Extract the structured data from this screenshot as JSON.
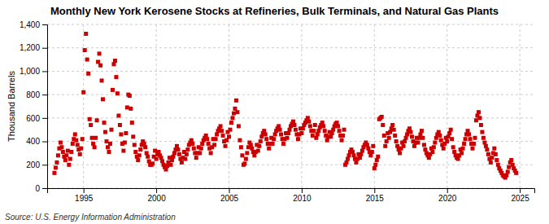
{
  "chart_data": {
    "type": "scatter",
    "title": "Monthly New York Kerosene Stocks at Refineries, Bulk Terminals, and Natural Gas Plants",
    "ylabel": "Thousand Barrels",
    "annotations": [
      "Source: U.S. Energy Information Administration"
    ],
    "color": "#cc0000",
    "marker": "square",
    "grid": true,
    "xlim": [
      1992.5,
      2026.0
    ],
    "xticks": [
      1995,
      2000,
      2005,
      2010,
      2015,
      2020,
      2025
    ],
    "ylim": [
      0,
      1400
    ],
    "yticks": [
      0,
      200,
      400,
      600,
      800,
      {
        "value": 1000,
        "label": "1,000"
      },
      {
        "value": 1200,
        "label": "1,200"
      },
      {
        "value": 1400,
        "label": "1,400"
      }
    ],
    "x": [
      1993.0,
      1993.083,
      1993.167,
      1993.25,
      1993.333,
      1993.417,
      1993.5,
      1993.583,
      1993.667,
      1993.75,
      1993.833,
      1993.917,
      1994.0,
      1994.083,
      1994.167,
      1994.25,
      1994.333,
      1994.417,
      1994.5,
      1994.583,
      1994.667,
      1994.75,
      1994.833,
      1994.917,
      1995.0,
      1995.083,
      1995.167,
      1995.25,
      1995.333,
      1995.417,
      1995.5,
      1995.583,
      1995.667,
      1995.75,
      1995.833,
      1995.917,
      1996.0,
      1996.083,
      1996.167,
      1996.25,
      1996.333,
      1996.417,
      1996.5,
      1996.583,
      1996.667,
      1996.75,
      1996.833,
      1996.917,
      1997.0,
      1997.083,
      1997.167,
      1997.25,
      1997.333,
      1997.417,
      1997.5,
      1997.583,
      1997.667,
      1997.75,
      1997.833,
      1997.917,
      1998.0,
      1998.083,
      1998.167,
      1998.25,
      1998.333,
      1998.417,
      1998.5,
      1998.583,
      1998.667,
      1998.75,
      1998.833,
      1998.917,
      1999.0,
      1999.083,
      1999.167,
      1999.25,
      1999.333,
      1999.417,
      1999.5,
      1999.583,
      1999.667,
      1999.75,
      1999.833,
      1999.917,
      2000.0,
      2000.083,
      2000.167,
      2000.25,
      2000.333,
      2000.417,
      2000.5,
      2000.583,
      2000.667,
      2000.75,
      2000.833,
      2000.917,
      2001.0,
      2001.083,
      2001.167,
      2001.25,
      2001.333,
      2001.417,
      2001.5,
      2001.583,
      2001.667,
      2001.75,
      2001.833,
      2001.917,
      2002.0,
      2002.083,
      2002.167,
      2002.25,
      2002.333,
      2002.417,
      2002.5,
      2002.583,
      2002.667,
      2002.75,
      2002.833,
      2002.917,
      2003.0,
      2003.083,
      2003.167,
      2003.25,
      2003.333,
      2003.417,
      2003.5,
      2003.583,
      2003.667,
      2003.75,
      2003.833,
      2003.917,
      2004.0,
      2004.083,
      2004.167,
      2004.25,
      2004.333,
      2004.417,
      2004.5,
      2004.583,
      2004.667,
      2004.75,
      2004.833,
      2004.917,
      2005.0,
      2005.083,
      2005.167,
      2005.25,
      2005.333,
      2005.417,
      2005.5,
      2005.583,
      2005.667,
      2005.75,
      2005.833,
      2005.917,
      2006.0,
      2006.083,
      2006.167,
      2006.25,
      2006.333,
      2006.417,
      2006.5,
      2006.583,
      2006.667,
      2006.75,
      2006.833,
      2006.917,
      2007.0,
      2007.083,
      2007.167,
      2007.25,
      2007.333,
      2007.417,
      2007.5,
      2007.583,
      2007.667,
      2007.75,
      2007.833,
      2007.917,
      2008.0,
      2008.083,
      2008.167,
      2008.25,
      2008.333,
      2008.417,
      2008.5,
      2008.583,
      2008.667,
      2008.75,
      2008.833,
      2008.917,
      2009.0,
      2009.083,
      2009.167,
      2009.25,
      2009.333,
      2009.417,
      2009.5,
      2009.583,
      2009.667,
      2009.75,
      2009.833,
      2009.917,
      2010.0,
      2010.083,
      2010.167,
      2010.25,
      2010.333,
      2010.417,
      2010.5,
      2010.583,
      2010.667,
      2010.75,
      2010.833,
      2010.917,
      2011.0,
      2011.083,
      2011.167,
      2011.25,
      2011.333,
      2011.417,
      2011.5,
      2011.583,
      2011.667,
      2011.75,
      2011.833,
      2011.917,
      2012.0,
      2012.083,
      2012.167,
      2012.25,
      2012.333,
      2012.417,
      2012.5,
      2012.583,
      2012.667,
      2012.75,
      2012.833,
      2012.917,
      2013.0,
      2013.083,
      2013.167,
      2013.25,
      2013.333,
      2013.417,
      2013.5,
      2013.583,
      2013.667,
      2013.75,
      2013.833,
      2013.917,
      2014.0,
      2014.083,
      2014.167,
      2014.25,
      2014.333,
      2014.417,
      2014.5,
      2014.583,
      2014.667,
      2014.75,
      2014.833,
      2014.917,
      2015.0,
      2015.083,
      2015.167,
      2015.25,
      2015.333,
      2015.417,
      2015.5,
      2015.583,
      2015.667,
      2015.75,
      2015.833,
      2015.917,
      2016.0,
      2016.083,
      2016.167,
      2016.25,
      2016.333,
      2016.417,
      2016.5,
      2016.583,
      2016.667,
      2016.75,
      2016.833,
      2016.917,
      2017.0,
      2017.083,
      2017.167,
      2017.25,
      2017.333,
      2017.417,
      2017.5,
      2017.583,
      2017.667,
      2017.75,
      2017.833,
      2017.917,
      2018.0,
      2018.083,
      2018.167,
      2018.25,
      2018.333,
      2018.417,
      2018.5,
      2018.583,
      2018.667,
      2018.75,
      2018.833,
      2018.917,
      2019.0,
      2019.083,
      2019.167,
      2019.25,
      2019.333,
      2019.417,
      2019.5,
      2019.583,
      2019.667,
      2019.75,
      2019.833,
      2019.917,
      2020.0,
      2020.083,
      2020.167,
      2020.25,
      2020.333,
      2020.417,
      2020.5,
      2020.583,
      2020.667,
      2020.75,
      2020.833,
      2020.917,
      2021.0,
      2021.083,
      2021.167,
      2021.25,
      2021.333,
      2021.417,
      2021.5,
      2021.583,
      2021.667,
      2021.75,
      2021.833,
      2021.917,
      2022.0,
      2022.083,
      2022.167,
      2022.25,
      2022.333,
      2022.417,
      2022.5,
      2022.583,
      2022.667,
      2022.75,
      2022.833,
      2022.917,
      2023.0,
      2023.083,
      2023.167,
      2023.25,
      2023.333,
      2023.417,
      2023.5,
      2023.583,
      2023.667,
      2023.75,
      2023.833,
      2023.917,
      2024.0,
      2024.083,
      2024.167,
      2024.25,
      2024.333,
      2024.417,
      2024.5,
      2024.583,
      2024.667,
      2024.75
    ],
    "values": [
      130,
      175,
      220,
      280,
      340,
      390,
      350,
      310,
      270,
      240,
      280,
      320,
      200,
      250,
      310,
      380,
      420,
      460,
      410,
      370,
      330,
      290,
      340,
      420,
      820,
      1180,
      1320,
      1100,
      980,
      590,
      540,
      430,
      380,
      350,
      430,
      580,
      1080,
      1150,
      1050,
      920,
      760,
      560,
      480,
      400,
      350,
      310,
      380,
      500,
      840,
      1060,
      1090,
      950,
      810,
      620,
      540,
      460,
      380,
      320,
      390,
      470,
      690,
      800,
      790,
      680,
      560,
      440,
      370,
      310,
      270,
      240,
      280,
      330,
      370,
      400,
      380,
      350,
      300,
      270,
      230,
      200,
      200,
      210,
      270,
      320,
      250,
      290,
      310,
      280,
      260,
      230,
      200,
      180,
      160,
      190,
      220,
      260,
      200,
      240,
      270,
      300,
      330,
      360,
      330,
      290,
      250,
      220,
      260,
      310,
      250,
      290,
      330,
      370,
      390,
      410,
      380,
      340,
      300,
      260,
      300,
      350,
      300,
      340,
      380,
      410,
      430,
      450,
      420,
      380,
      340,
      300,
      350,
      420,
      370,
      420,
      460,
      490,
      510,
      530,
      490,
      450,
      400,
      360,
      410,
      480,
      440,
      500,
      560,
      600,
      640,
      680,
      750,
      650,
      530,
      410,
      350,
      280,
      200,
      210,
      250,
      300,
      350,
      390,
      370,
      340,
      310,
      280,
      310,
      370,
      320,
      360,
      400,
      440,
      470,
      490,
      460,
      420,
      380,
      340,
      380,
      430,
      380,
      420,
      460,
      490,
      510,
      530,
      500,
      460,
      420,
      380,
      420,
      470,
      430,
      470,
      500,
      530,
      550,
      570,
      540,
      500,
      460,
      420,
      460,
      510,
      470,
      510,
      540,
      560,
      580,
      600,
      570,
      530,
      490,
      450,
      490,
      540,
      430,
      460,
      490,
      520,
      540,
      560,
      530,
      490,
      450,
      410,
      440,
      480,
      440,
      470,
      500,
      530,
      550,
      560,
      530,
      490,
      450,
      410,
      450,
      500,
      200,
      220,
      250,
      280,
      310,
      330,
      310,
      280,
      250,
      220,
      250,
      290,
      260,
      290,
      320,
      350,
      370,
      390,
      370,
      340,
      310,
      280,
      310,
      360,
      170,
      200,
      240,
      270,
      590,
      600,
      610,
      540,
      450,
      360,
      400,
      470,
      430,
      480,
      510,
      540,
      500,
      450,
      400,
      360,
      330,
      300,
      340,
      390,
      360,
      400,
      430,
      460,
      490,
      510,
      480,
      440,
      400,
      360,
      390,
      430,
      390,
      430,
      460,
      490,
      430,
      370,
      330,
      300,
      280,
      260,
      290,
      340,
      310,
      350,
      390,
      430,
      460,
      480,
      450,
      410,
      370,
      340,
      380,
      430,
      400,
      440,
      470,
      500,
      420,
      350,
      310,
      280,
      260,
      250,
      280,
      330,
      300,
      340,
      380,
      420,
      460,
      490,
      460,
      420,
      380,
      340,
      380,
      430,
      580,
      620,
      650,
      600,
      540,
      480,
      430,
      390,
      360,
      330,
      290,
      250,
      220,
      260,
      300,
      340,
      290,
      240,
      200,
      170,
      150,
      130,
      110,
      100,
      90,
      110,
      140,
      180,
      220,
      240,
      200,
      170,
      150,
      130
    ]
  }
}
